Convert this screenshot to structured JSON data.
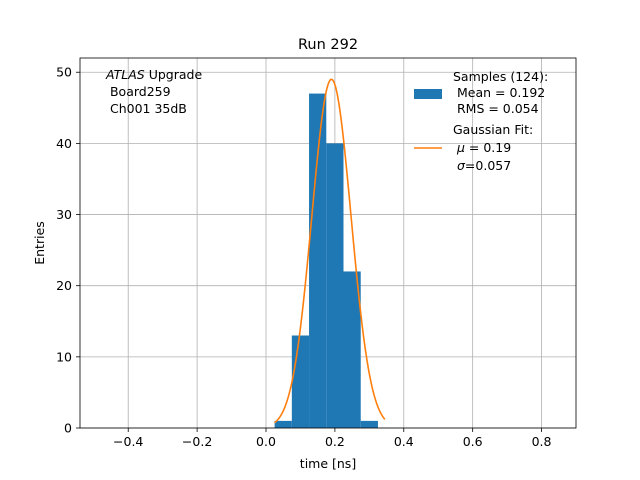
{
  "chart_data": {
    "type": "bar",
    "title": "Run 292",
    "xlabel": "time [ns]",
    "ylabel": "Entries",
    "xlim": [
      -0.54,
      0.9
    ],
    "ylim": [
      0,
      52
    ],
    "xticks": [
      -0.4,
      -0.2,
      0.0,
      0.2,
      0.4,
      0.6,
      0.8
    ],
    "xtick_labels": [
      "−0.4",
      "−0.2",
      "0.0",
      "0.2",
      "0.4",
      "0.6",
      "0.8"
    ],
    "yticks": [
      0,
      10,
      20,
      30,
      40,
      50
    ],
    "ytick_labels": [
      "0",
      "10",
      "20",
      "30",
      "40",
      "50"
    ],
    "grid": true,
    "annotation": {
      "italic_prefix": "ATLAS",
      "line1": " Upgrade",
      "line2": " Board259",
      "line3": " Ch001 35dB"
    },
    "legend": {
      "placement": "top-right",
      "histogram_label": [
        "Samples (124):",
        " Mean = 0.192",
        " RMS = 0.054"
      ],
      "fit_label": [
        "Gaussian Fit:",
        " = 0.19",
        "=0.057"
      ],
      "fit_symbols": [
        "μ",
        "σ"
      ]
    },
    "histogram": {
      "name": "Samples (124):",
      "color": "#1f77b4",
      "bin_edges": [
        0.025,
        0.075,
        0.125,
        0.175,
        0.225,
        0.275,
        0.325
      ],
      "counts": [
        1,
        13,
        47,
        40,
        22,
        1
      ],
      "gap_bins": [
        {
          "x0": 0.05,
          "x1": 0.1,
          "count": 1
        },
        {
          "x0": 0.1,
          "x1": 0.15,
          "count": 13
        },
        {
          "x0": 0.15,
          "x1": 0.2,
          "count": 47
        },
        {
          "x0": 0.2,
          "x1": 0.25,
          "count": 40
        },
        {
          "x0": 0.25,
          "x1": 0.3,
          "count": 22
        },
        {
          "x0": 0.3,
          "x1": 0.35,
          "count": 1
        }
      ]
    },
    "fit": {
      "name": "Gaussian Fit:",
      "color": "#ff7f0e",
      "mu": 0.19,
      "sigma": 0.057,
      "amplitude": 49,
      "x_range": [
        0.025,
        0.345
      ]
    }
  }
}
